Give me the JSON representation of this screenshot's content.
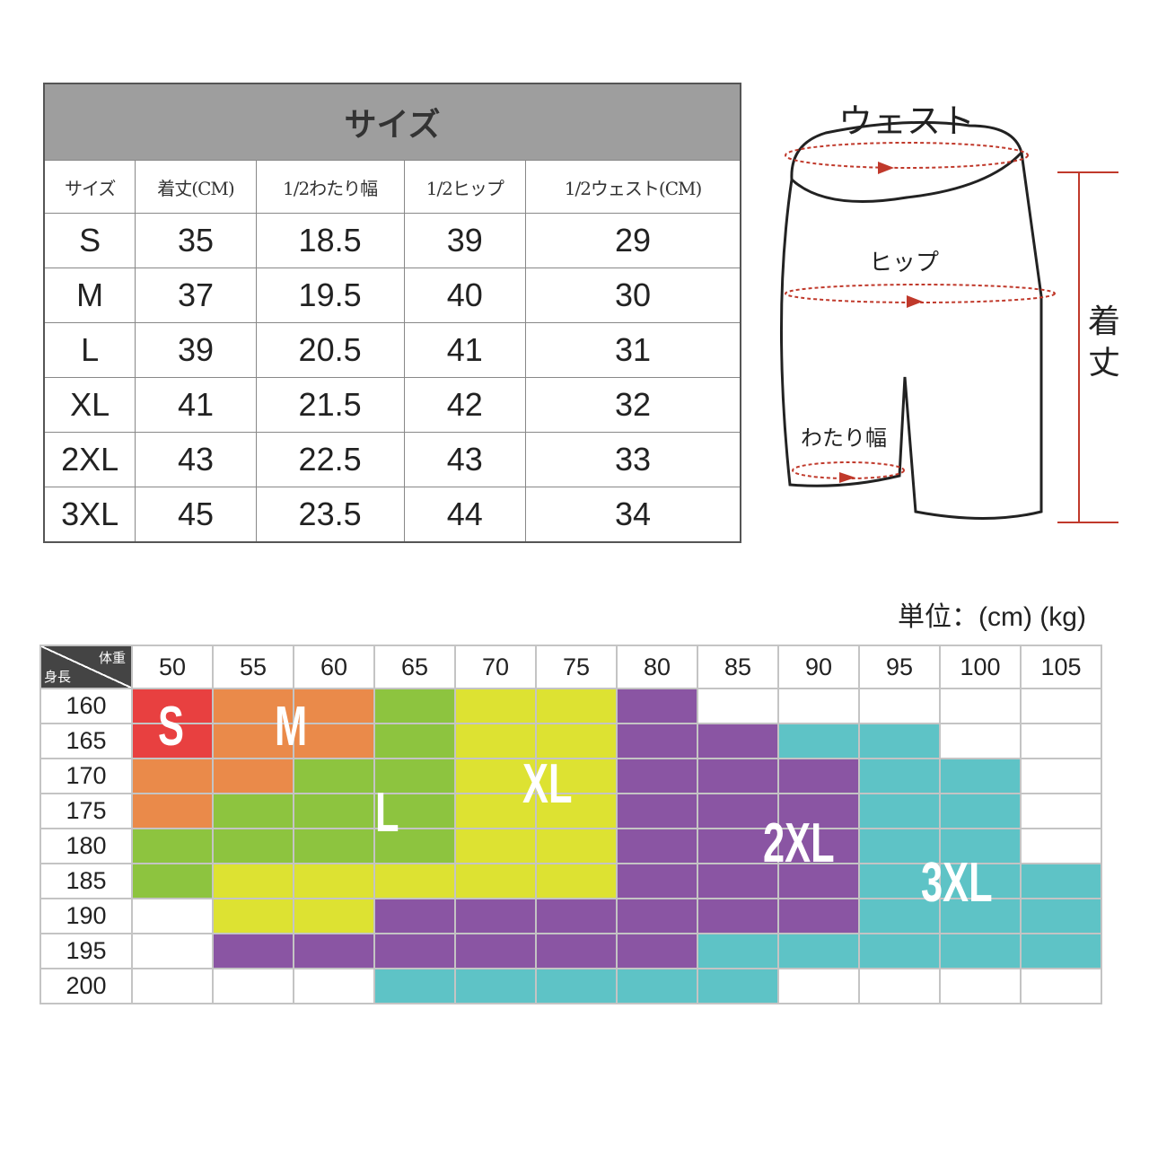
{
  "spec_table": {
    "title": "サイズ",
    "headers": [
      "サイズ",
      "着丈(CM)",
      "1/2わたり幅",
      "1/2ヒップ",
      "1/2ウェスト(CM)"
    ],
    "rows": [
      [
        "S",
        "35",
        "18.5",
        "39",
        "29"
      ],
      [
        "M",
        "37",
        "19.5",
        "40",
        "30"
      ],
      [
        "L",
        "39",
        "20.5",
        "41",
        "31"
      ],
      [
        "XL",
        "41",
        "21.5",
        "42",
        "32"
      ],
      [
        "2XL",
        "43",
        "22.5",
        "43",
        "33"
      ],
      [
        "3XL",
        "45",
        "23.5",
        "44",
        "34"
      ]
    ]
  },
  "diagram": {
    "waist": "ウェスト",
    "hip": "ヒップ",
    "thigh": "わたり幅",
    "length": "着丈",
    "line_color": "#c0392b"
  },
  "unit": "単位：(cm) (kg)",
  "chart_data": {
    "type": "table",
    "corner_top": "体重",
    "corner_bottom": "身長",
    "weights": [
      "50",
      "55",
      "60",
      "65",
      "70",
      "75",
      "80",
      "85",
      "90",
      "95",
      "100",
      "105"
    ],
    "heights": [
      "160",
      "165",
      "170",
      "175",
      "180",
      "185",
      "190",
      "195",
      "200"
    ],
    "size_colors": {
      "S": "#e84040",
      "M": "#ea8a4a",
      "L": "#8dc43f",
      "XL": "#dde232",
      "2XL": "#8a55a3",
      "3XL": "#5ec3c6"
    },
    "sizes_by_height": [
      [
        "S",
        "M",
        "M",
        "L",
        "XL",
        "XL",
        "2XL",
        "",
        "",
        "",
        "",
        ""
      ],
      [
        "S",
        "M",
        "M",
        "L",
        "XL",
        "XL",
        "2XL",
        "2XL",
        "3XL",
        "3XL",
        "",
        ""
      ],
      [
        "M",
        "M",
        "L",
        "L",
        "XL",
        "XL",
        "2XL",
        "2XL",
        "2XL",
        "3XL",
        "3XL",
        ""
      ],
      [
        "M",
        "L",
        "L",
        "L",
        "XL",
        "XL",
        "2XL",
        "2XL",
        "2XL",
        "3XL",
        "3XL",
        ""
      ],
      [
        "L",
        "L",
        "L",
        "L",
        "XL",
        "XL",
        "2XL",
        "2XL",
        "2XL",
        "3XL",
        "3XL",
        ""
      ],
      [
        "L",
        "XL",
        "XL",
        "XL",
        "XL",
        "XL",
        "2XL",
        "2XL",
        "2XL",
        "3XL",
        "3XL",
        "3XL"
      ],
      [
        "",
        "XL",
        "XL",
        "2XL",
        "2XL",
        "2XL",
        "2XL",
        "2XL",
        "2XL",
        "3XL",
        "3XL",
        "3XL"
      ],
      [
        "",
        "2XL",
        "2XL",
        "2XL",
        "2XL",
        "2XL",
        "2XL",
        "3XL",
        "3XL",
        "3XL",
        "3XL",
        "3XL"
      ],
      [
        "",
        "",
        "",
        "3XL",
        "3XL",
        "3XL",
        "3XL",
        "3XL",
        "",
        "",
        "",
        ""
      ]
    ],
    "region_labels": [
      "S",
      "M",
      "L",
      "XL",
      "2XL",
      "3XL"
    ]
  }
}
